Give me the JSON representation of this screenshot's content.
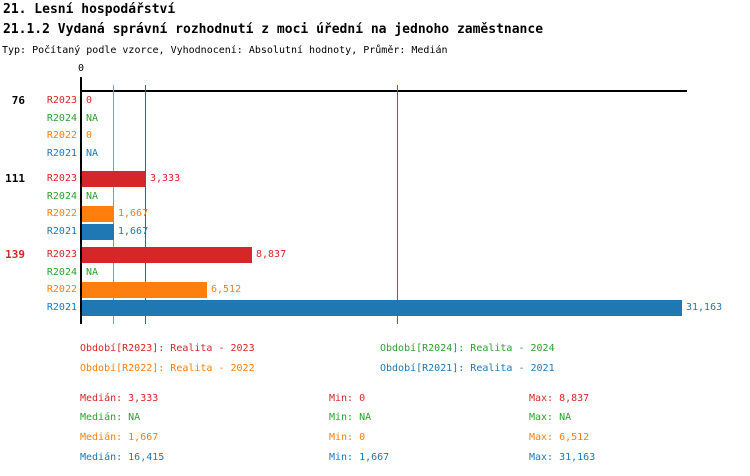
{
  "header": {
    "title": "21. Lesní hospodářství",
    "subtitle": "21.1.2 Vydaná správní rozhodnutí z moci úřední na jednoho zaměstnance",
    "meta": "Typ: Počítaný podle vzorce, Vyhodnocení: Absolutní hodnoty, Průměr: Medián"
  },
  "colors": {
    "R2023": "#d62728",
    "R2024": "#2ca02c",
    "R2022": "#ff7f0e",
    "R2021": "#1f77b4",
    "axis": "#000000",
    "group_label_default": "#000000",
    "group_label_highlight": "#d62728"
  },
  "chart_data": {
    "type": "bar",
    "orientation": "horizontal",
    "title": "21.1.2 Vydaná správní rozhodnutí z moci úřední na jednoho zaměstnance",
    "xlabel": "",
    "ylabel": "",
    "xlim": [
      0,
      31500
    ],
    "x_tick_labels": [
      "0"
    ],
    "grid": false,
    "legend_position": "bottom",
    "series_order": [
      "R2023",
      "R2024",
      "R2022",
      "R2021"
    ],
    "medians": {
      "R2023": 3333,
      "R2024": null,
      "R2022": 1667,
      "R2021": 16415
    },
    "groups": [
      {
        "label": "76",
        "highlight": false,
        "rows": [
          {
            "series": "R2023",
            "value": 0,
            "display": "0"
          },
          {
            "series": "R2024",
            "value": null,
            "display": "NA"
          },
          {
            "series": "R2022",
            "value": 0,
            "display": "0"
          },
          {
            "series": "R2021",
            "value": null,
            "display": "NA"
          }
        ]
      },
      {
        "label": "111",
        "highlight": false,
        "rows": [
          {
            "series": "R2023",
            "value": 3333,
            "display": "3,333"
          },
          {
            "series": "R2024",
            "value": null,
            "display": "NA"
          },
          {
            "series": "R2022",
            "value": 1667,
            "display": "1,667"
          },
          {
            "series": "R2021",
            "value": 1667,
            "display": "1,667"
          }
        ]
      },
      {
        "label": "139",
        "highlight": true,
        "rows": [
          {
            "series": "R2023",
            "value": 8837,
            "display": "8,837"
          },
          {
            "series": "R2024",
            "value": null,
            "display": "NA"
          },
          {
            "series": "R2022",
            "value": 6512,
            "display": "6,512"
          },
          {
            "series": "R2021",
            "value": 31163,
            "display": "31,163"
          }
        ]
      }
    ]
  },
  "legend": [
    {
      "series": "R2023",
      "label": "Období[R2023]: Realita - 2023"
    },
    {
      "series": "R2024",
      "label": "Období[R2024]: Realita - 2024"
    },
    {
      "series": "R2022",
      "label": "Období[R2022]: Realita - 2022"
    },
    {
      "series": "R2021",
      "label": "Období[R2021]: Realita - 2021"
    }
  ],
  "stats": [
    {
      "series": "R2023",
      "median": "Medián: 3,333",
      "min": "Min: 0",
      "max": "Max: 8,837"
    },
    {
      "series": "R2024",
      "median": "Medián: NA",
      "min": "Min: NA",
      "max": "Max: NA"
    },
    {
      "series": "R2022",
      "median": "Medián: 1,667",
      "min": "Min: 0",
      "max": "Max: 6,512"
    },
    {
      "series": "R2021",
      "median": "Medián: 16,415",
      "min": "Min: 1,667",
      "max": "Max: 31,163"
    }
  ]
}
